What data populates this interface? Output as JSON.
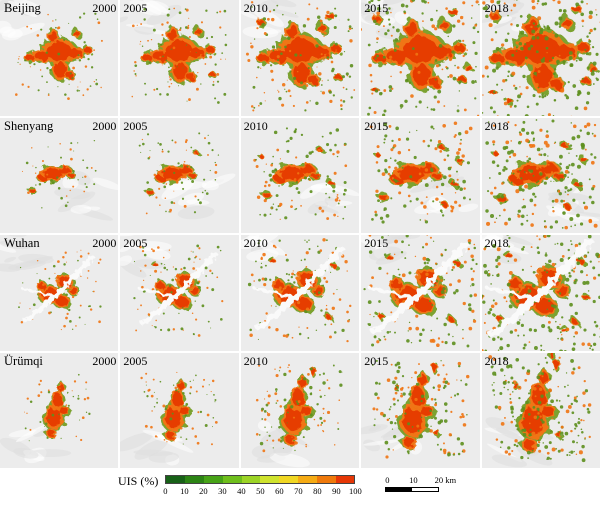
{
  "figure": {
    "rows": [
      {
        "city": "Beijing"
      },
      {
        "city": "Shenyang"
      },
      {
        "city": "Wuhan"
      },
      {
        "city": "Ürümqi"
      }
    ],
    "years": [
      "2000",
      "2005",
      "2010",
      "2015",
      "2018"
    ],
    "legend": {
      "label": "UIS (%)",
      "ticks": [
        0,
        10,
        20,
        30,
        40,
        50,
        60,
        70,
        80,
        90,
        100
      ],
      "colors": [
        "#176117",
        "#2c8414",
        "#47a317",
        "#6fbf1c",
        "#9cd426",
        "#cfe32e",
        "#f0d723",
        "#f5ab14",
        "#ef790b",
        "#e63706"
      ]
    },
    "scalebar": {
      "labels": [
        "0",
        "10",
        "20 km"
      ]
    },
    "map_style": {
      "background": "#ececec",
      "terrain_shade": "#dedede",
      "veg_fringe": "#6f9a1e",
      "veg_speckle": "#5d8f1d",
      "urban_mid": "#f07412",
      "urban_high": "#e63c06",
      "river": "#fafafa"
    }
  }
}
